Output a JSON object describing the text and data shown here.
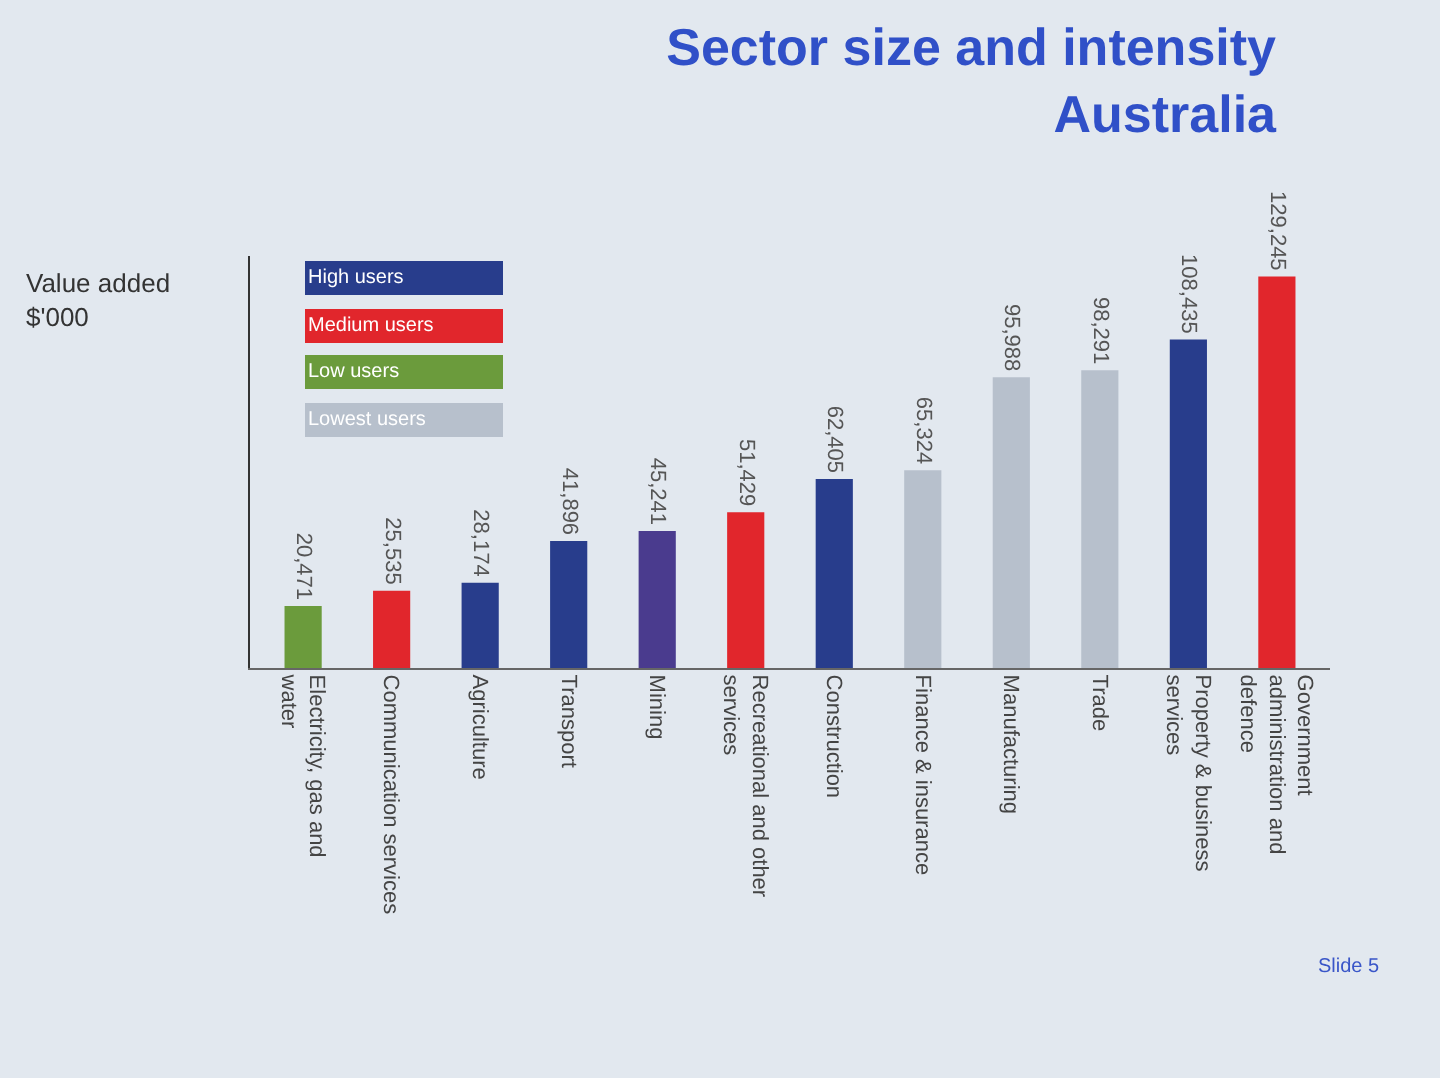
{
  "chart_data": {
    "type": "bar",
    "title": "Sector size and intensity Australia",
    "ylabel": "Value added $'000",
    "categories": [
      "Electricity, gas and water",
      "Communication services",
      "Agriculture",
      "Transport",
      "Mining",
      "Recreational and other services",
      "Construction",
      "Finance & insurance",
      "Manufacturing",
      "Trade",
      "Property & business services",
      "Government administration and defence"
    ],
    "series": [
      {
        "name": "High users",
        "color": "#283d8c",
        "colors": [
          "#283d8c",
          "#283d8c",
          "#283d8c",
          "#283d8c",
          "#4a3b8e",
          "#283d8c",
          "#283d8c",
          "#283d8c",
          "#283d8c",
          "#283d8c",
          "#283d8c",
          "#283d8c"
        ],
        "values": [
          null,
          null,
          28174,
          41896,
          45241,
          null,
          62405,
          null,
          null,
          null,
          108435,
          null
        ],
        "value_labels": [
          null,
          null,
          "28,174",
          "41,896",
          "45,241",
          null,
          "62,405",
          null,
          null,
          null,
          "108,435",
          null
        ]
      },
      {
        "name": "Medium users",
        "color": "#e1262c",
        "values": [
          null,
          25535,
          null,
          null,
          null,
          51429,
          null,
          null,
          null,
          null,
          null,
          129245
        ],
        "value_labels": [
          null,
          "25,535",
          null,
          null,
          null,
          "51,429",
          null,
          null,
          null,
          null,
          null,
          "129,245"
        ]
      },
      {
        "name": "Low users",
        "color": "#6b9b3c",
        "values": [
          20471,
          null,
          null,
          null,
          null,
          null,
          null,
          null,
          null,
          null,
          null,
          null
        ],
        "value_labels": [
          "20,471",
          null,
          null,
          null,
          null,
          null,
          null,
          null,
          null,
          null,
          null,
          null
        ]
      },
      {
        "name": "Lowest users",
        "color": "#b7c0cc",
        "values": [
          null,
          null,
          null,
          null,
          null,
          null,
          null,
          65324,
          95988,
          98291,
          null,
          null
        ],
        "value_labels": [
          null,
          null,
          null,
          null,
          null,
          null,
          null,
          "65,324",
          "95,988",
          "98,291",
          null,
          null
        ]
      }
    ],
    "tick_labels": "x",
    "legend": "top left",
    "annotations": [
      "Slide 5"
    ]
  }
}
